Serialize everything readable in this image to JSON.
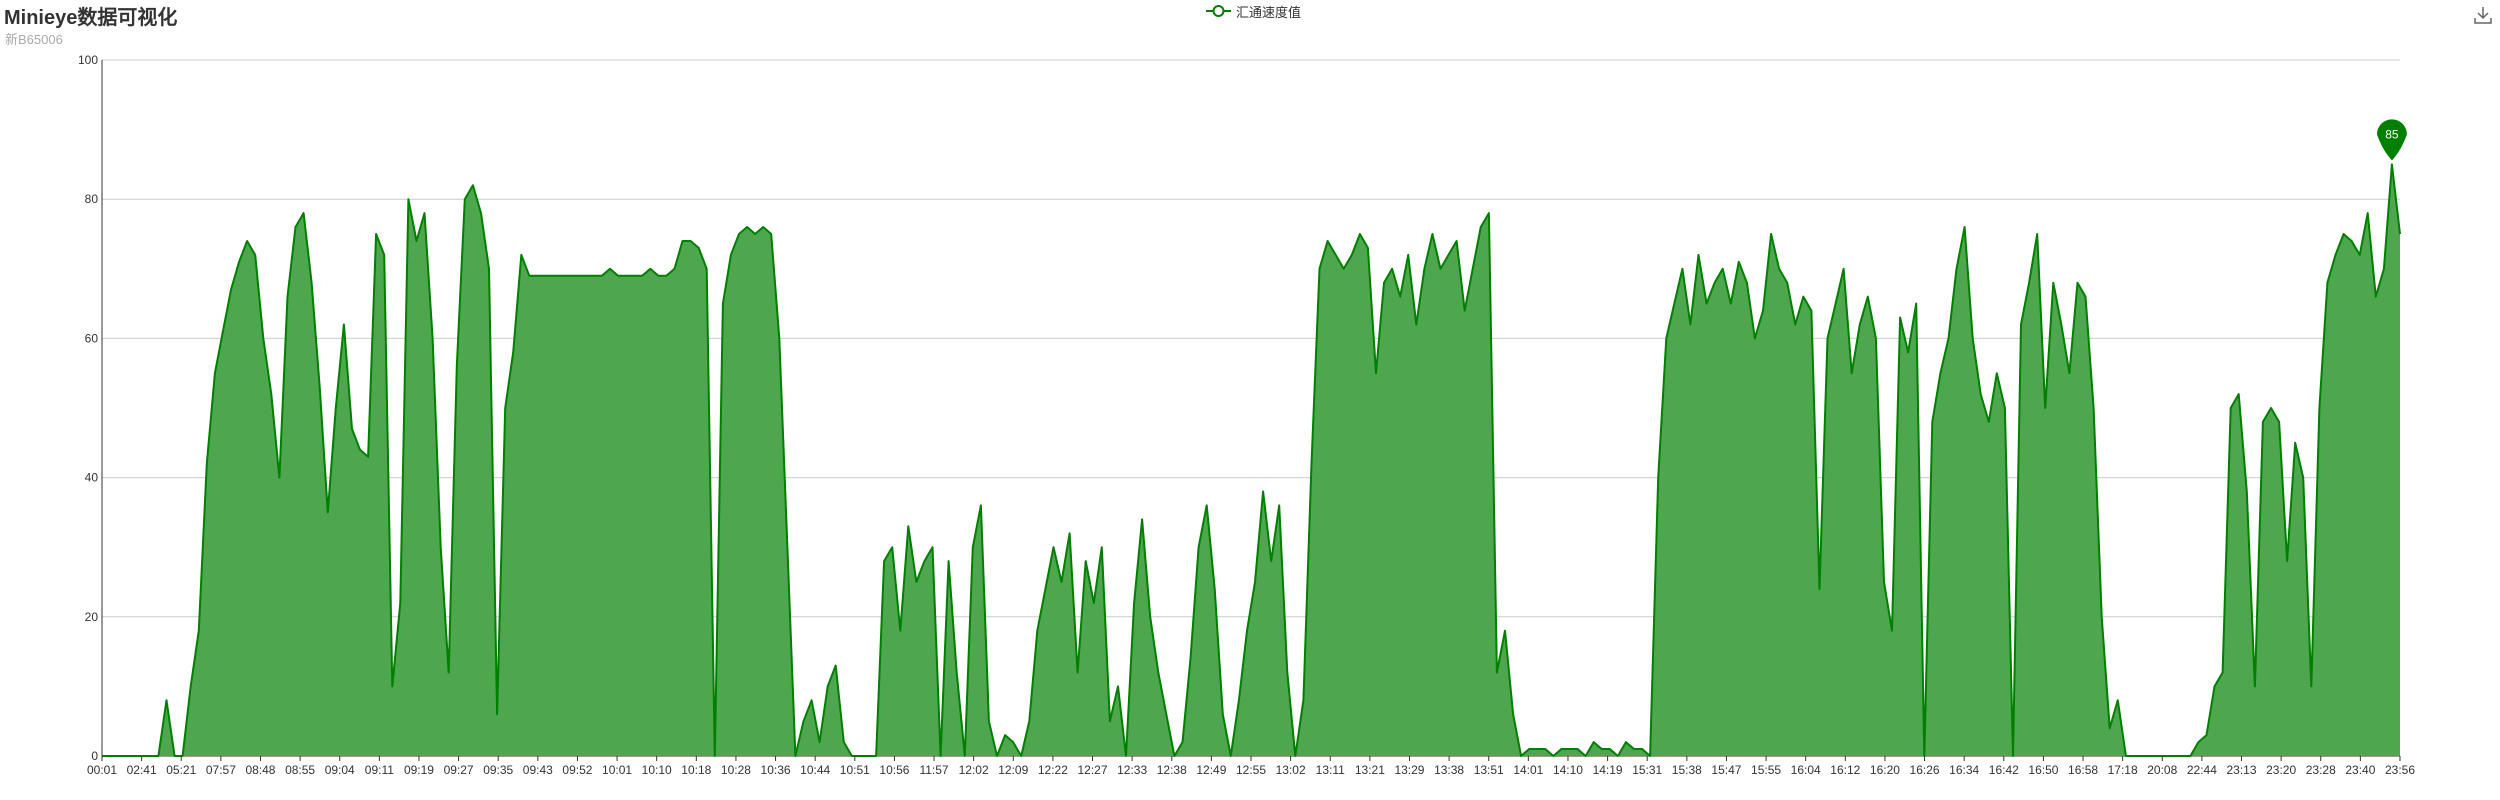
{
  "header": {
    "title": "Minieye数据可视化",
    "subtitle": "新B65006"
  },
  "toolbar": {
    "download_icon": "download-icon"
  },
  "legend": {
    "label": "汇通速度值"
  },
  "colors": {
    "series_line": "#008000",
    "series_fill": "#4ea64e",
    "grid": "#cccccc",
    "axis": "#333333",
    "title": "#333333",
    "subtitle": "#aaaaaa"
  },
  "chart_data": {
    "type": "area",
    "title": "Minieye数据可视化",
    "subtitle": "新B65006",
    "legend_position": "top-center",
    "grid": true,
    "ylim": [
      0,
      100
    ],
    "yticks": [
      0,
      20,
      40,
      60,
      80,
      100
    ],
    "x_tick_labels": [
      "00:01",
      "02:41",
      "05:21",
      "07:57",
      "08:48",
      "08:55",
      "09:04",
      "09:11",
      "09:19",
      "09:27",
      "09:35",
      "09:43",
      "09:52",
      "10:01",
      "10:10",
      "10:18",
      "10:28",
      "10:36",
      "10:44",
      "10:51",
      "10:56",
      "11:57",
      "12:02",
      "12:09",
      "12:22",
      "12:27",
      "12:33",
      "12:38",
      "12:49",
      "12:55",
      "13:02",
      "13:11",
      "13:21",
      "13:29",
      "13:38",
      "13:51",
      "14:01",
      "14:10",
      "14:19",
      "15:31",
      "15:38",
      "15:47",
      "15:55",
      "16:04",
      "16:12",
      "16:20",
      "16:26",
      "16:34",
      "16:42",
      "16:50",
      "16:58",
      "17:18",
      "20:08",
      "22:44",
      "23:13",
      "23:20",
      "23:28",
      "23:40",
      "23:56"
    ],
    "max_marker": {
      "label": "85",
      "value": 85
    },
    "series": [
      {
        "name": "汇通速度值",
        "values": [
          0,
          0,
          0,
          0,
          0,
          0,
          0,
          0,
          8,
          0,
          0,
          10,
          18,
          42,
          55,
          61,
          67,
          71,
          74,
          72,
          60,
          52,
          40,
          66,
          76,
          78,
          68,
          53,
          35,
          50,
          62,
          47,
          44,
          43,
          75,
          72,
          10,
          22,
          80,
          74,
          78,
          60,
          30,
          12,
          56,
          80,
          82,
          78,
          70,
          6,
          50,
          58,
          72,
          69,
          69,
          69,
          69,
          69,
          69,
          69,
          69,
          69,
          69,
          70,
          69,
          69,
          69,
          69,
          70,
          69,
          69,
          70,
          74,
          74,
          73,
          70,
          0,
          65,
          72,
          75,
          76,
          75,
          76,
          75,
          60,
          30,
          0,
          5,
          8,
          2,
          10,
          13,
          2,
          0,
          0,
          0,
          0,
          28,
          30,
          18,
          33,
          25,
          28,
          30,
          0,
          28,
          12,
          0,
          30,
          36,
          5,
          0,
          3,
          2,
          0,
          5,
          18,
          24,
          30,
          25,
          32,
          12,
          28,
          22,
          30,
          5,
          10,
          0,
          22,
          34,
          20,
          12,
          6,
          0,
          2,
          14,
          30,
          36,
          24,
          6,
          0,
          8,
          18,
          25,
          38,
          28,
          36,
          12,
          0,
          8,
          42,
          70,
          74,
          72,
          70,
          72,
          75,
          73,
          55,
          68,
          70,
          66,
          72,
          62,
          70,
          75,
          70,
          72,
          74,
          64,
          70,
          76,
          78,
          12,
          18,
          6,
          0,
          1,
          1,
          1,
          0,
          1,
          1,
          1,
          0,
          2,
          1,
          1,
          0,
          2,
          1,
          1,
          0,
          40,
          60,
          65,
          70,
          62,
          72,
          65,
          68,
          70,
          65,
          71,
          68,
          60,
          64,
          75,
          70,
          68,
          62,
          66,
          64,
          24,
          60,
          65,
          70,
          55,
          62,
          66,
          60,
          25,
          18,
          63,
          58,
          65,
          0,
          48,
          55,
          60,
          70,
          76,
          60,
          52,
          48,
          55,
          50,
          0,
          62,
          68,
          75,
          50,
          68,
          62,
          55,
          68,
          66,
          50,
          20,
          4,
          8,
          0,
          0,
          0,
          0,
          0,
          0,
          0,
          0,
          0,
          2,
          3,
          10,
          12,
          50,
          52,
          38,
          10,
          48,
          50,
          48,
          28,
          45,
          40,
          10,
          50,
          68,
          72,
          75,
          74,
          72,
          78,
          66,
          70,
          85,
          75
        ]
      }
    ]
  }
}
